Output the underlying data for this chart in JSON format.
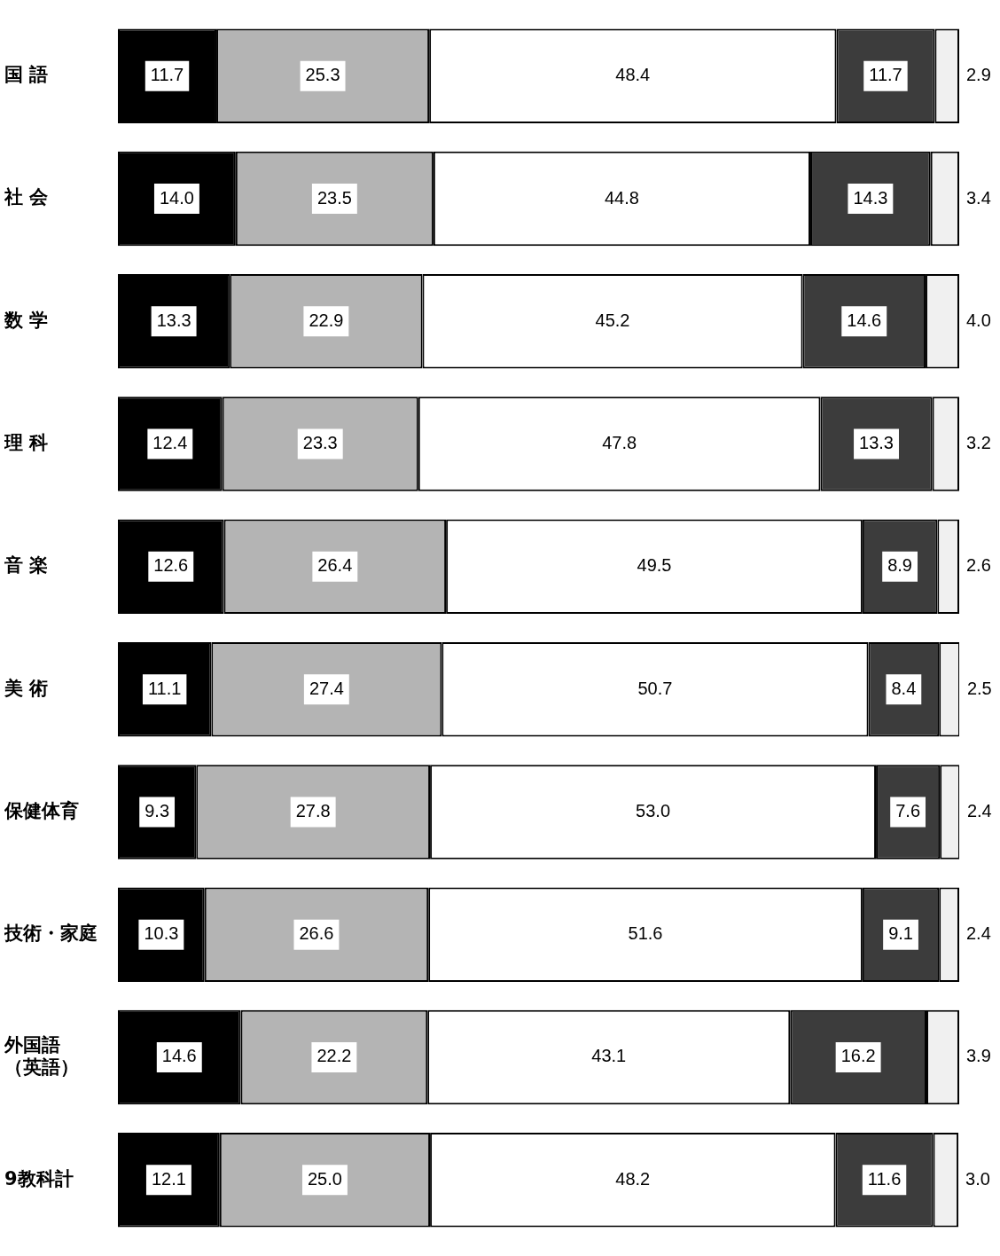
{
  "chart_data": {
    "type": "bar",
    "orientation": "horizontal",
    "stacked": true,
    "tick_labels": "y",
    "legend": false,
    "xlim": [
      0,
      100
    ],
    "categories": [
      "国 語",
      "社 会",
      "数 学",
      "理 科",
      "音 楽",
      "美 術",
      "保健体育",
      "技術・家庭",
      "外国語（英語）",
      "9教科計"
    ],
    "series": [
      {
        "color": "#000000",
        "values": [
          11.7,
          14.0,
          13.3,
          12.4,
          12.6,
          11.1,
          9.3,
          10.3,
          14.6,
          12.1
        ],
        "value_labels": [
          "11.7",
          "14.0",
          "13.3",
          "12.4",
          "12.6",
          "11.1",
          "9.3",
          "10.3",
          "14.6",
          "12.1"
        ]
      },
      {
        "color": "#b4b4b4",
        "values": [
          25.3,
          23.5,
          22.9,
          23.3,
          26.4,
          27.4,
          27.8,
          26.6,
          22.2,
          25.0
        ],
        "value_labels": [
          "25.3",
          "23.5",
          "22.9",
          "23.3",
          "26.4",
          "27.4",
          "27.8",
          "26.6",
          "22.2",
          "25.0"
        ]
      },
      {
        "color": "#ffffff",
        "values": [
          48.4,
          44.8,
          45.2,
          47.8,
          49.5,
          50.7,
          53.0,
          51.6,
          43.1,
          48.2
        ],
        "value_labels": [
          "48.4",
          "44.8",
          "45.2",
          "47.8",
          "49.5",
          "50.7",
          "53.0",
          "51.6",
          "43.1",
          "48.2"
        ]
      },
      {
        "color": "#3c3c3c",
        "values": [
          11.7,
          14.3,
          14.6,
          13.3,
          8.9,
          8.4,
          7.6,
          9.1,
          16.2,
          11.6
        ],
        "value_labels": [
          "11.7",
          "14.3",
          "14.6",
          "13.3",
          "8.9",
          "8.4",
          "7.6",
          "9.1",
          "16.2",
          "11.6"
        ]
      },
      {
        "color": "#f0f0f0",
        "values": [
          2.9,
          3.4,
          4.0,
          3.2,
          2.6,
          2.5,
          2.4,
          2.4,
          3.9,
          3.0
        ],
        "value_labels": [
          "2.9",
          "3.4",
          "4.0",
          "3.2",
          "2.6",
          "2.5",
          "2.4",
          "2.4",
          "3.9",
          "3.0"
        ]
      }
    ]
  }
}
